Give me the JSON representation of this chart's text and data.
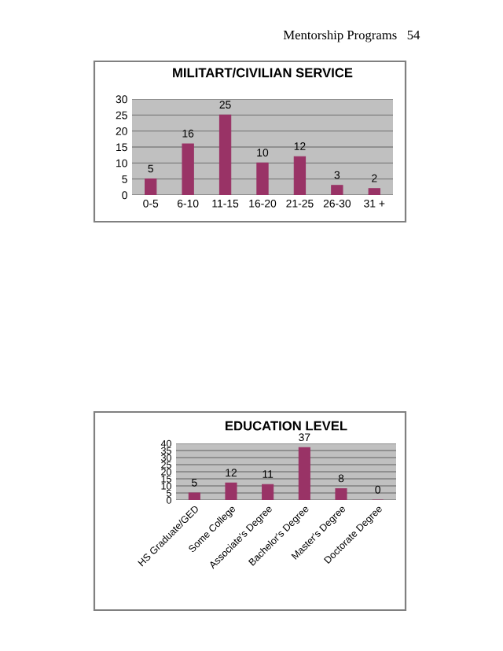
{
  "chart_data": [
    {
      "type": "bar",
      "title": "MILITART/CIVILIAN SERVICE",
      "annotations": [
        "Mentorship Programs   54"
      ],
      "categories": [
        "0-5",
        "6-10",
        "11-15",
        "16-20",
        "21-25",
        "26-30",
        "31 +"
      ],
      "values": [
        5,
        16,
        25,
        10,
        12,
        3,
        2
      ],
      "color": "#993366",
      "ylim": [
        0,
        30
      ],
      "yticks": [
        0,
        5,
        10,
        15,
        20,
        25,
        30
      ],
      "grid": "y",
      "data_labels": true
    },
    {
      "type": "bar",
      "title": "EDUCATION LEVEL",
      "categories": [
        "HS Graduate/GED",
        "Some College",
        "Associate's Degree",
        "Bachelor's Degree",
        "Master's Degree",
        "Doctorate Degree"
      ],
      "values": [
        5,
        12,
        11,
        37,
        8,
        0
      ],
      "color": "#993366",
      "ylim": [
        0,
        40
      ],
      "yticks": [
        0,
        5,
        10,
        15,
        20,
        25,
        30,
        35,
        40
      ],
      "grid": "y",
      "data_labels": true
    }
  ]
}
